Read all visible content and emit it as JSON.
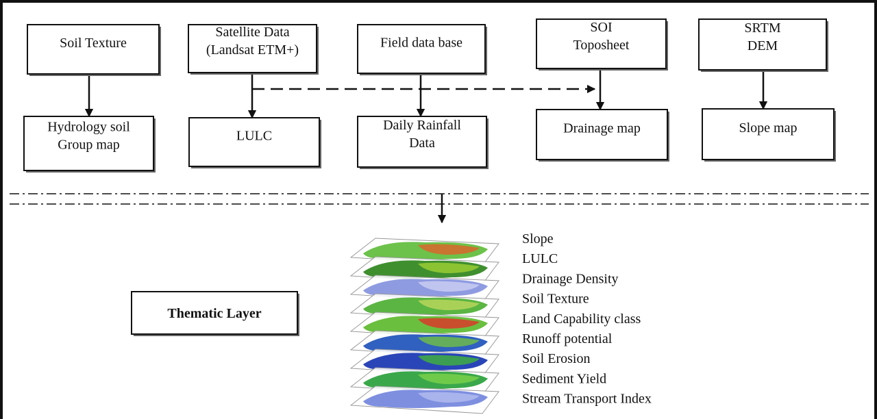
{
  "flow_boxes": [
    {
      "source": [
        "Soil Texture"
      ],
      "output": [
        "Hydrology soil",
        "Group map"
      ]
    },
    {
      "source": [
        "Satellite Data",
        "(Landsat ETM+)"
      ],
      "output": [
        "LULC"
      ]
    },
    {
      "source": [
        "Field data base"
      ],
      "output": [
        "Daily Rainfall",
        "Data"
      ]
    },
    {
      "source": [
        "SOI",
        "Toposheet"
      ],
      "output": [
        "Drainage map"
      ]
    },
    {
      "source": [
        "SRTM",
        "DEM"
      ],
      "output": [
        "Slope map"
      ]
    }
  ],
  "thematic_layer": {
    "label": "Thematic Layer",
    "layers": [
      "Slope",
      "LULC",
      "Drainage Density",
      "Soil Texture",
      "Land Capability class",
      "Runoff potential",
      "Soil Erosion",
      "Sediment Yield",
      "Stream Transport Index"
    ]
  }
}
